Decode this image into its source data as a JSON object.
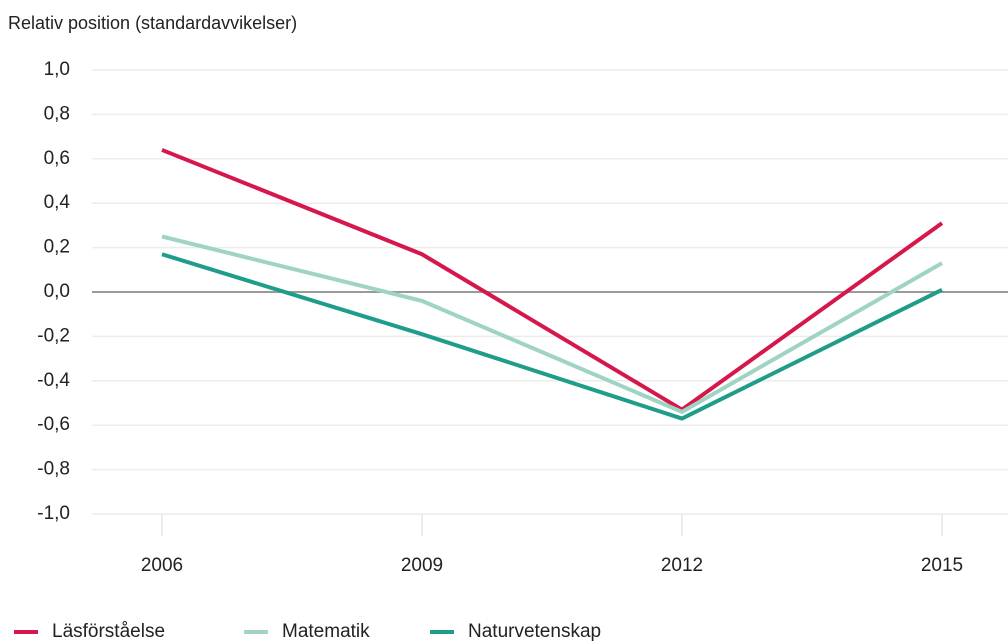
{
  "chart_data": {
    "type": "line",
    "title": "Relativ position (standardavvikelser)",
    "categories": [
      "2006",
      "2009",
      "2012",
      "2015"
    ],
    "series": [
      {
        "name": "Läsförståelse",
        "color": "#d6174b",
        "values": [
          0.64,
          0.17,
          -0.53,
          0.31
        ]
      },
      {
        "name": "Matematik",
        "color": "#9fd3c4",
        "values": [
          0.25,
          -0.04,
          -0.54,
          0.13
        ]
      },
      {
        "name": "Naturvetenskap",
        "color": "#1f9c8a",
        "values": [
          0.17,
          -0.19,
          -0.57,
          0.01
        ]
      }
    ],
    "ylim": [
      -1,
      1
    ],
    "yticks": [
      {
        "value": 1,
        "label": "1,0"
      },
      {
        "value": 0.8,
        "label": "0,8"
      },
      {
        "value": 0.6,
        "label": "0,6"
      },
      {
        "value": 0.4,
        "label": "0,4"
      },
      {
        "value": 0.2,
        "label": "0,2"
      },
      {
        "value": 0,
        "label": "0,0"
      },
      {
        "value": -0.2,
        "label": "-0,2"
      },
      {
        "value": -0.4,
        "label": "-0,4"
      },
      {
        "value": -0.6,
        "label": "-0,6"
      },
      {
        "value": -0.8,
        "label": "-0,8"
      },
      {
        "value": -1,
        "label": "-1,0"
      }
    ],
    "grid": true
  }
}
